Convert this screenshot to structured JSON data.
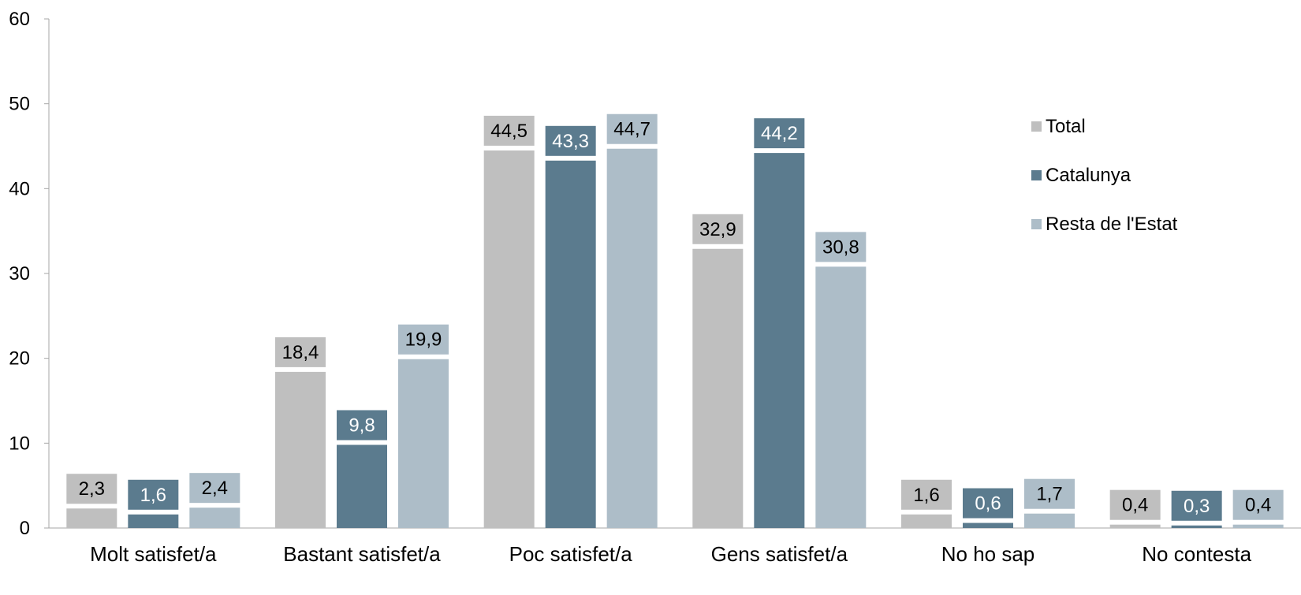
{
  "chart_data": {
    "type": "bar",
    "categories": [
      "Molt satisfet/a",
      "Bastant satisfet/a",
      "Poc satisfet/a",
      "Gens satisfet/a",
      "No ho sap",
      "No contesta"
    ],
    "series": [
      {
        "name": "Total",
        "color": "#BFBFBF",
        "label_text_color": "#000000",
        "values": [
          2.3,
          18.4,
          44.5,
          32.9,
          1.6,
          0.4
        ],
        "labels": [
          "2,3",
          "18,4",
          "44,5",
          "32,9",
          "1,6",
          "0,4"
        ]
      },
      {
        "name": "Catalunya",
        "color": "#5B7B8E",
        "label_text_color": "#FFFFFF",
        "values": [
          1.6,
          9.8,
          43.3,
          44.2,
          0.6,
          0.3
        ],
        "labels": [
          "1,6",
          "9,8",
          "43,3",
          "44,2",
          "0,6",
          "0,3"
        ]
      },
      {
        "name": "Resta de l'Estat",
        "color": "#ADBDC8",
        "label_text_color": "#000000",
        "values": [
          2.4,
          19.9,
          44.7,
          30.8,
          1.7,
          0.4
        ],
        "labels": [
          "2,4",
          "19,9",
          "44,7",
          "30,8",
          "1,7",
          "0,4"
        ]
      }
    ],
    "yticks": [
      "0",
      "10",
      "20",
      "30",
      "40",
      "50",
      "60"
    ],
    "ylim": [
      0,
      60
    ],
    "grid": false,
    "legend_position": "right"
  }
}
